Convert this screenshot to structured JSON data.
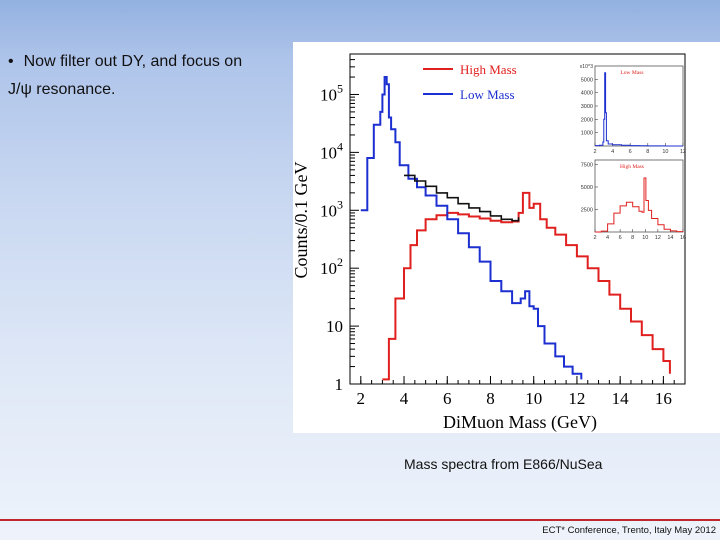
{
  "slide": {
    "bullet_symbol": "•",
    "bullet_line1": "Now filter out DY, and focus on",
    "bullet_line2": "J/ψ resonance.",
    "caption": "Mass spectra from E866/NuSea",
    "footer": "ECT* Conference, Trento, Italy May 2012"
  },
  "colors": {
    "high_mass": "#e0201e",
    "low_mass": "#1c2fd0",
    "total": "#111111",
    "footer_rule": "#c0282d"
  },
  "chart_data": [
    {
      "type": "line",
      "xlabel": "DiMuon Mass (GeV)",
      "ylabel": "Counts/0.1 GeV",
      "y_scale": "log",
      "xlim": [
        1.5,
        17
      ],
      "ylim": [
        1,
        500000
      ],
      "x_ticks": [
        "2",
        "4",
        "6",
        "8",
        "10",
        "12",
        "14",
        "16"
      ],
      "y_ticks": [
        {
          "base": "1",
          "exp": ""
        },
        {
          "base": "10",
          "exp": ""
        },
        {
          "base": "10",
          "exp": "2"
        },
        {
          "base": "10",
          "exp": "3"
        },
        {
          "base": "10",
          "exp": "4"
        },
        {
          "base": "10",
          "exp": "5"
        }
      ],
      "legend_position": "top-right",
      "series": [
        {
          "name": "High Mass",
          "color": "#e0201e",
          "x": [
            3.0,
            3.3,
            3.6,
            4.0,
            4.3,
            4.6,
            5.0,
            5.5,
            6.0,
            6.5,
            7.0,
            7.5,
            8.0,
            8.5,
            9.0,
            9.3,
            9.5,
            9.8,
            10.0,
            10.3,
            10.6,
            11.0,
            11.5,
            12.0,
            12.5,
            13.0,
            13.5,
            14.0,
            14.5,
            15.0,
            15.5,
            16.0,
            16.3
          ],
          "y": [
            1.2,
            6,
            30,
            100,
            250,
            450,
            700,
            820,
            900,
            850,
            780,
            720,
            660,
            620,
            640,
            900,
            2000,
            1100,
            1300,
            700,
            500,
            380,
            250,
            160,
            100,
            60,
            35,
            20,
            12,
            7,
            4,
            2.5,
            1.5
          ]
        },
        {
          "name": "Low Mass",
          "color": "#1c2fd0",
          "x": [
            2.0,
            2.3,
            2.6,
            2.9,
            3.0,
            3.1,
            3.2,
            3.3,
            3.4,
            3.6,
            3.8,
            4.2,
            4.6,
            5.0,
            5.5,
            6.0,
            6.5,
            7.0,
            7.5,
            8.0,
            8.5,
            9.0,
            9.4,
            9.6,
            9.8,
            10.0,
            10.2,
            10.5,
            11.0,
            11.4,
            11.8,
            12.2
          ],
          "y": [
            1000,
            8000,
            30000,
            50000,
            100000,
            200000,
            150000,
            40000,
            25000,
            15000,
            6000,
            3500,
            2500,
            1800,
            1200,
            700,
            400,
            230,
            130,
            60,
            40,
            25,
            30,
            40,
            22,
            20,
            10,
            5,
            3,
            2,
            1.5,
            1.2
          ]
        },
        {
          "name": "",
          "color": "#111111",
          "x": [
            4.0,
            4.5,
            5.0,
            5.5,
            6.0,
            6.5,
            7.0,
            7.5,
            8.0,
            8.5,
            9.0,
            9.3
          ],
          "y": [
            4000,
            3200,
            2600,
            2000,
            1650,
            1300,
            1100,
            950,
            800,
            700,
            660,
            760
          ]
        }
      ]
    },
    {
      "type": "line",
      "title": "Low Mass",
      "y_scale": "linear",
      "xlim": [
        2,
        12
      ],
      "ylim": [
        0,
        6000
      ],
      "y_axis_multiplier": "x10^3",
      "x_ticks": [
        "2",
        "4",
        "6",
        "8",
        "10",
        "12"
      ],
      "y_ticks": [
        "1000",
        "2000",
        "3000",
        "4000",
        "5000"
      ],
      "series": [
        {
          "name": "",
          "color": "#1c2fd0",
          "x": [
            2,
            2.5,
            2.9,
            3.0,
            3.1,
            3.2,
            3.3,
            3.5,
            4,
            5,
            6,
            7,
            8,
            9,
            10,
            11,
            12
          ],
          "y": [
            30,
            60,
            300,
            2000,
            5500,
            2500,
            400,
            150,
            90,
            50,
            30,
            15,
            10,
            5,
            3,
            1,
            0
          ]
        }
      ]
    },
    {
      "type": "line",
      "title": "High Mass",
      "y_scale": "linear",
      "xlim": [
        2,
        16
      ],
      "ylim": [
        0,
        8000
      ],
      "x_ticks": [
        "2",
        "4",
        "6",
        "8",
        "10",
        "12",
        "14",
        "16"
      ],
      "y_ticks": [
        "2500",
        "5000",
        "7500"
      ],
      "series": [
        {
          "name": "",
          "color": "#e0201e",
          "x": [
            2,
            3,
            4,
            5,
            6,
            7,
            8,
            9,
            9.5,
            9.8,
            10.1,
            10.5,
            11,
            12,
            13,
            14,
            15,
            16
          ],
          "y": [
            0,
            100,
            900,
            2100,
            2900,
            3300,
            2800,
            2300,
            2200,
            6000,
            3500,
            2400,
            1500,
            800,
            300,
            120,
            50,
            20
          ]
        }
      ]
    }
  ]
}
